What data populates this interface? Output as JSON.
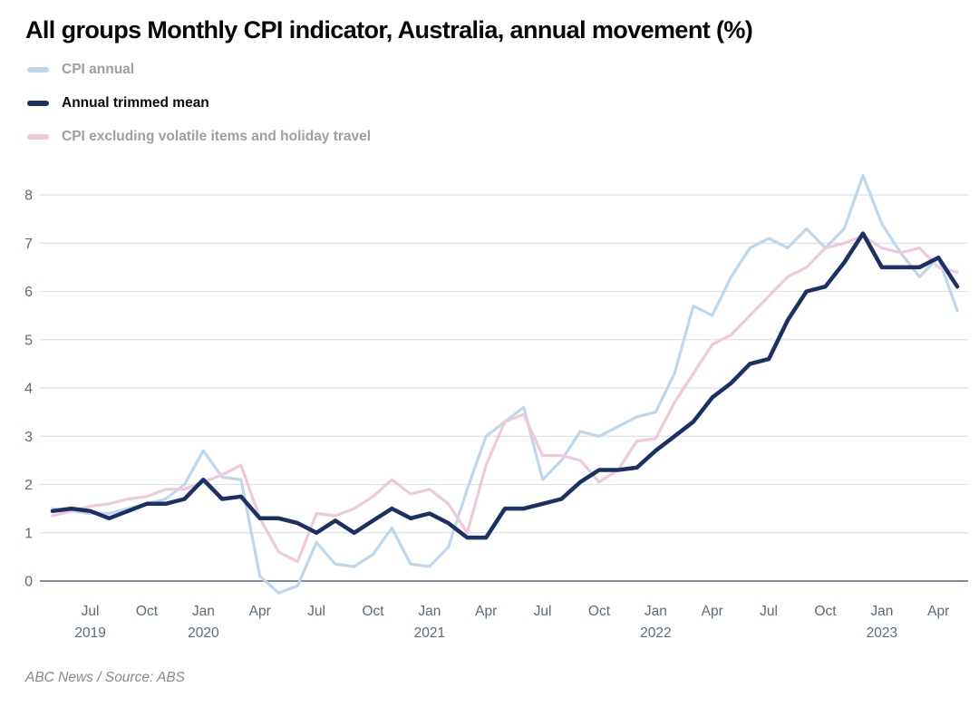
{
  "title": "All groups Monthly CPI indicator, Australia, annual movement (%)",
  "footer": "ABC News / Source: ABS",
  "legend": [
    {
      "label": "CPI annual",
      "color": "#bcd7ee",
      "emphasis": false
    },
    {
      "label": "Annual trimmed mean",
      "color": "#1a3166",
      "emphasis": true
    },
    {
      "label": "CPI excluding volatile items and holiday travel",
      "color": "#f0c9d8",
      "emphasis": false
    }
  ],
  "colors": {
    "gridline": "#dde2e8",
    "zero_line": "#7f8c9b",
    "axis_text": "#5b6b7c",
    "title_text": "#070707",
    "footer_text": "#8a8a8a"
  },
  "chart_data": {
    "type": "line",
    "title": "All groups Monthly CPI indicator, Australia, annual movement (%)",
    "xlabel": "",
    "ylabel": "annual movement (%)",
    "ylim": [
      -0.5,
      8.6
    ],
    "y_ticks": [
      0,
      1,
      2,
      3,
      4,
      5,
      6,
      7,
      8
    ],
    "grid": "horizontal-only",
    "legend_position": "top-left",
    "x": [
      "2019-05",
      "2019-06",
      "2019-07",
      "2019-08",
      "2019-09",
      "2019-10",
      "2019-11",
      "2019-12",
      "2020-01",
      "2020-02",
      "2020-03",
      "2020-04",
      "2020-05",
      "2020-06",
      "2020-07",
      "2020-08",
      "2020-09",
      "2020-10",
      "2020-11",
      "2020-12",
      "2021-01",
      "2021-02",
      "2021-03",
      "2021-04",
      "2021-05",
      "2021-06",
      "2021-07",
      "2021-08",
      "2021-09",
      "2021-10",
      "2021-11",
      "2021-12",
      "2022-01",
      "2022-02",
      "2022-03",
      "2022-04",
      "2022-05",
      "2022-06",
      "2022-07",
      "2022-08",
      "2022-09",
      "2022-10",
      "2022-11",
      "2022-12",
      "2023-01",
      "2023-02",
      "2023-03",
      "2023-04",
      "2023-05"
    ],
    "x_ticks": [
      {
        "m": 2,
        "label": "Jul",
        "year": "2019"
      },
      {
        "m": 5,
        "label": "Oct",
        "year": ""
      },
      {
        "m": 8,
        "label": "Jan",
        "year": "2020"
      },
      {
        "m": 11,
        "label": "Apr",
        "year": ""
      },
      {
        "m": 14,
        "label": "Jul",
        "year": ""
      },
      {
        "m": 17,
        "label": "Oct",
        "year": ""
      },
      {
        "m": 20,
        "label": "Jan",
        "year": "2021"
      },
      {
        "m": 23,
        "label": "Apr",
        "year": ""
      },
      {
        "m": 26,
        "label": "Jul",
        "year": ""
      },
      {
        "m": 29,
        "label": "Oct",
        "year": ""
      },
      {
        "m": 32,
        "label": "Jan",
        "year": "2022"
      },
      {
        "m": 35,
        "label": "Apr",
        "year": ""
      },
      {
        "m": 38,
        "label": "Jul",
        "year": ""
      },
      {
        "m": 41,
        "label": "Oct",
        "year": ""
      },
      {
        "m": 44,
        "label": "Jan",
        "year": "2023"
      },
      {
        "m": 47,
        "label": "Apr",
        "year": ""
      }
    ],
    "series": [
      {
        "name": "CPI annual",
        "color": "#bcd7ee",
        "width": 3.2,
        "values": [
          1.5,
          1.45,
          1.4,
          1.4,
          1.5,
          1.6,
          1.7,
          2.0,
          2.7,
          2.15,
          2.1,
          0.1,
          -0.25,
          -0.1,
          0.8,
          0.35,
          0.3,
          0.55,
          1.1,
          0.35,
          0.3,
          0.7,
          1.9,
          3.0,
          3.3,
          3.6,
          2.1,
          2.5,
          3.1,
          3.0,
          3.2,
          3.4,
          3.5,
          4.3,
          5.7,
          5.5,
          6.3,
          6.9,
          7.1,
          6.9,
          7.3,
          6.9,
          7.3,
          8.4,
          7.4,
          6.8,
          6.3,
          6.7,
          5.6
        ]
      },
      {
        "name": "CPI excluding volatile items and holiday travel",
        "color": "#f0c9d8",
        "width": 3.2,
        "values": [
          1.35,
          1.45,
          1.55,
          1.6,
          1.7,
          1.75,
          1.9,
          1.9,
          2.05,
          2.2,
          2.4,
          1.3,
          0.6,
          0.4,
          1.4,
          1.35,
          1.5,
          1.75,
          2.1,
          1.8,
          1.9,
          1.6,
          1.0,
          2.4,
          3.3,
          3.45,
          2.6,
          2.6,
          2.5,
          2.05,
          2.3,
          2.9,
          2.95,
          3.7,
          4.3,
          4.9,
          5.1,
          5.5,
          5.9,
          6.3,
          6.5,
          6.9,
          7.0,
          7.15,
          6.9,
          6.8,
          6.9,
          6.5,
          6.4
        ]
      },
      {
        "name": "Annual trimmed mean",
        "color": "#1a3166",
        "width": 4.5,
        "values": [
          1.45,
          1.5,
          1.45,
          1.3,
          1.45,
          1.6,
          1.6,
          1.7,
          2.1,
          1.7,
          1.75,
          1.3,
          1.3,
          1.2,
          1.0,
          1.25,
          1.0,
          1.25,
          1.5,
          1.3,
          1.4,
          1.2,
          0.9,
          0.9,
          1.5,
          1.5,
          1.6,
          1.7,
          2.05,
          2.3,
          2.3,
          2.35,
          2.7,
          3.0,
          3.3,
          3.8,
          4.1,
          4.5,
          4.6,
          5.4,
          6.0,
          6.1,
          6.6,
          7.2,
          6.5,
          6.5,
          6.5,
          6.7,
          6.1
        ]
      }
    ]
  }
}
